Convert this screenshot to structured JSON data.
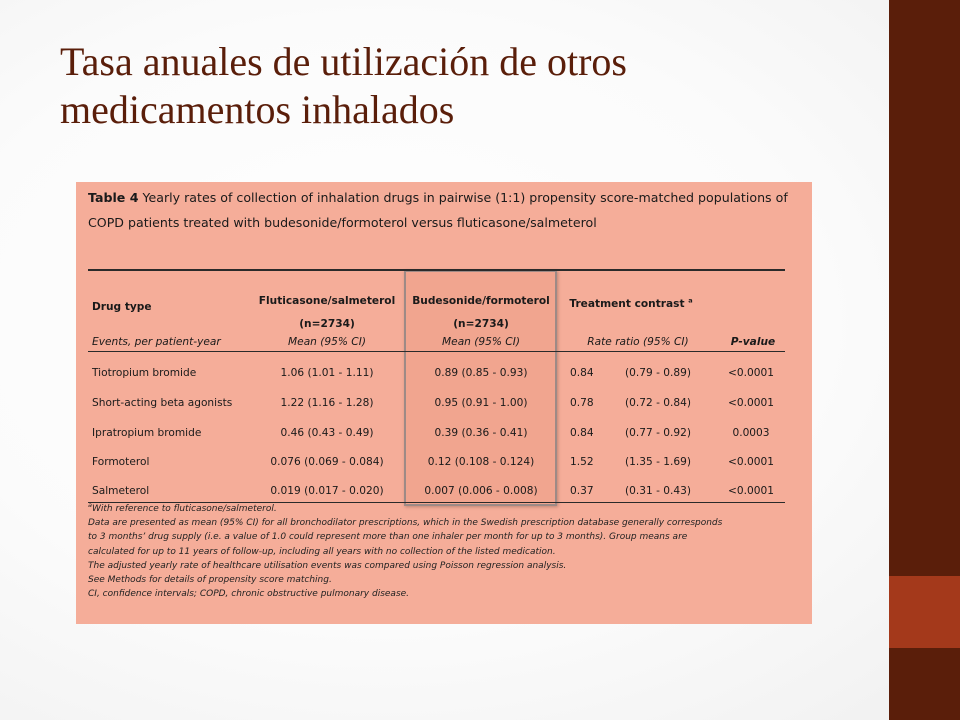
{
  "slide": {
    "title_line1": "Tasa anuales de utilización de otros",
    "title_line2": "medicamentos inhalados",
    "colors": {
      "band_dark": "#5a1e0a",
      "band_accent": "#a4391b",
      "table_bg": "#f5ad99"
    }
  },
  "table": {
    "caption_label": "Table 4",
    "caption_text": "Yearly rates of collection of inhalation drugs in pairwise (1:1) propensity score-matched populations of COPD patients treated with budesonide/formoterol versus fluticasone/salmeterol",
    "headers": {
      "drug_type": "Drug type",
      "flut": "Fluticasone/salmeterol",
      "flut_n": "(n=2734)",
      "bud": "Budesonide/formoterol",
      "bud_n": "(n=2734)",
      "contrast": "Treatment contrast",
      "contrast_sup": "a"
    },
    "subheaders": {
      "events": "Events, per patient-year",
      "flut_mean": "Mean (95% CI)",
      "bud_mean": "Mean (95% CI)",
      "rate_ratio": "Rate ratio (95% CI)",
      "pvalue": "P-value"
    },
    "rows": [
      {
        "drug": "Tiotropium bromide",
        "flut": "1.06 (1.01 - 1.11)",
        "bud": "0.89 (0.85 - 0.93)",
        "rr": "0.84",
        "ci": "(0.79 - 0.89)",
        "p": "<0.0001"
      },
      {
        "drug": "Short-acting beta agonists",
        "flut": "1.22 (1.16 - 1.28)",
        "bud": "0.95 (0.91 - 1.00)",
        "rr": "0.78",
        "ci": "(0.72 - 0.84)",
        "p": "<0.0001"
      },
      {
        "drug": "Ipratropium bromide",
        "flut": "0.46 (0.43 - 0.49)",
        "bud": "0.39 (0.36 - 0.41)",
        "rr": "0.84",
        "ci": "(0.77 - 0.92)",
        "p": "0.0003"
      },
      {
        "drug": "Formoterol",
        "flut": "0.076 (0.069 - 0.084)",
        "bud": "0.12 (0.108 - 0.124)",
        "rr": "1.52",
        "ci": "(1.35 - 1.69)",
        "p": "<0.0001"
      },
      {
        "drug": "Salmeterol",
        "flut": "0.019 (0.017 - 0.020)",
        "bud": "0.007 (0.006 - 0.008)",
        "rr": "0.37",
        "ci": "(0.31 - 0.43)",
        "p": "<0.0001"
      }
    ],
    "footnotes": {
      "a_mark": "a",
      "a_text": "With reference to fluticasone/salmeterol.",
      "data_1": "Data are presented as mean (95% CI) for all bronchodilator prescriptions, which in the Swedish prescription database generally corresponds",
      "data_2": "to 3 months’ drug supply (i.e. a value of 1.0 could represent more than one inhaler per month for up to 3 months). Group means are",
      "data_3": "calculated for up to 11 years of follow-up, including all years with no collection of the listed medication.",
      "adjusted": "The adjusted yearly rate of healthcare utilisation events was compared using Poisson regression analysis.",
      "methods": "See Methods for details of propensity score matching.",
      "abbrev": "CI, confidence intervals; COPD, chronic obstructive pulmonary disease."
    }
  }
}
